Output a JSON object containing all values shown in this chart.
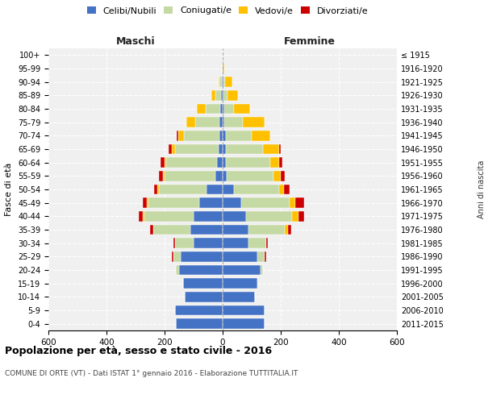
{
  "age_groups": [
    "0-4",
    "5-9",
    "10-14",
    "15-19",
    "20-24",
    "25-29",
    "30-34",
    "35-39",
    "40-44",
    "45-49",
    "50-54",
    "55-59",
    "60-64",
    "65-69",
    "70-74",
    "75-79",
    "80-84",
    "85-89",
    "90-94",
    "95-99",
    "100+"
  ],
  "birth_years": [
    "2011-2015",
    "2006-2010",
    "2001-2005",
    "1996-2000",
    "1991-1995",
    "1986-1990",
    "1981-1985",
    "1976-1980",
    "1971-1975",
    "1966-1970",
    "1961-1965",
    "1956-1960",
    "1951-1955",
    "1946-1950",
    "1941-1945",
    "1936-1940",
    "1931-1935",
    "1926-1930",
    "1921-1925",
    "1916-1920",
    "≤ 1915"
  ],
  "maschi": {
    "celibi": [
      160,
      165,
      130,
      135,
      150,
      145,
      100,
      110,
      100,
      80,
      55,
      25,
      20,
      15,
      12,
      10,
      8,
      5,
      2,
      1,
      0
    ],
    "coniugati": [
      0,
      0,
      0,
      2,
      10,
      25,
      65,
      130,
      170,
      175,
      165,
      175,
      175,
      150,
      120,
      85,
      50,
      20,
      8,
      1,
      0
    ],
    "vedovi": [
      0,
      0,
      0,
      0,
      0,
      0,
      0,
      0,
      5,
      5,
      5,
      5,
      5,
      10,
      20,
      30,
      30,
      15,
      5,
      0,
      0
    ],
    "divorziati": [
      0,
      0,
      0,
      0,
      0,
      5,
      5,
      10,
      15,
      15,
      10,
      15,
      15,
      10,
      5,
      0,
      0,
      0,
      0,
      0,
      0
    ]
  },
  "femmine": {
    "nubili": [
      145,
      145,
      110,
      120,
      130,
      120,
      90,
      90,
      80,
      65,
      40,
      15,
      10,
      10,
      10,
      5,
      5,
      3,
      2,
      1,
      0
    ],
    "coniugate": [
      0,
      0,
      0,
      2,
      10,
      25,
      60,
      125,
      160,
      165,
      155,
      160,
      155,
      130,
      90,
      65,
      35,
      15,
      5,
      0,
      0
    ],
    "vedove": [
      0,
      0,
      0,
      0,
      0,
      0,
      0,
      10,
      20,
      20,
      15,
      25,
      30,
      55,
      65,
      75,
      55,
      35,
      25,
      5,
      0
    ],
    "divorziate": [
      0,
      0,
      0,
      0,
      0,
      5,
      5,
      10,
      20,
      30,
      20,
      15,
      10,
      5,
      0,
      0,
      0,
      0,
      0,
      0,
      0
    ]
  },
  "colors": {
    "celibi": "#4472C4",
    "coniugati": "#C5D9A4",
    "vedovi": "#FFC000",
    "divorziati": "#CC0000"
  },
  "xlim": 600,
  "title": "Popolazione per età, sesso e stato civile - 2016",
  "subtitle": "COMUNE DI ORTE (VT) - Dati ISTAT 1° gennaio 2016 - Elaborazione TUTTITALIA.IT",
  "ylabel_left": "Fasce di età",
  "ylabel_right": "Anni di nascita",
  "xlabel_maschi": "Maschi",
  "xlabel_femmine": "Femmine"
}
